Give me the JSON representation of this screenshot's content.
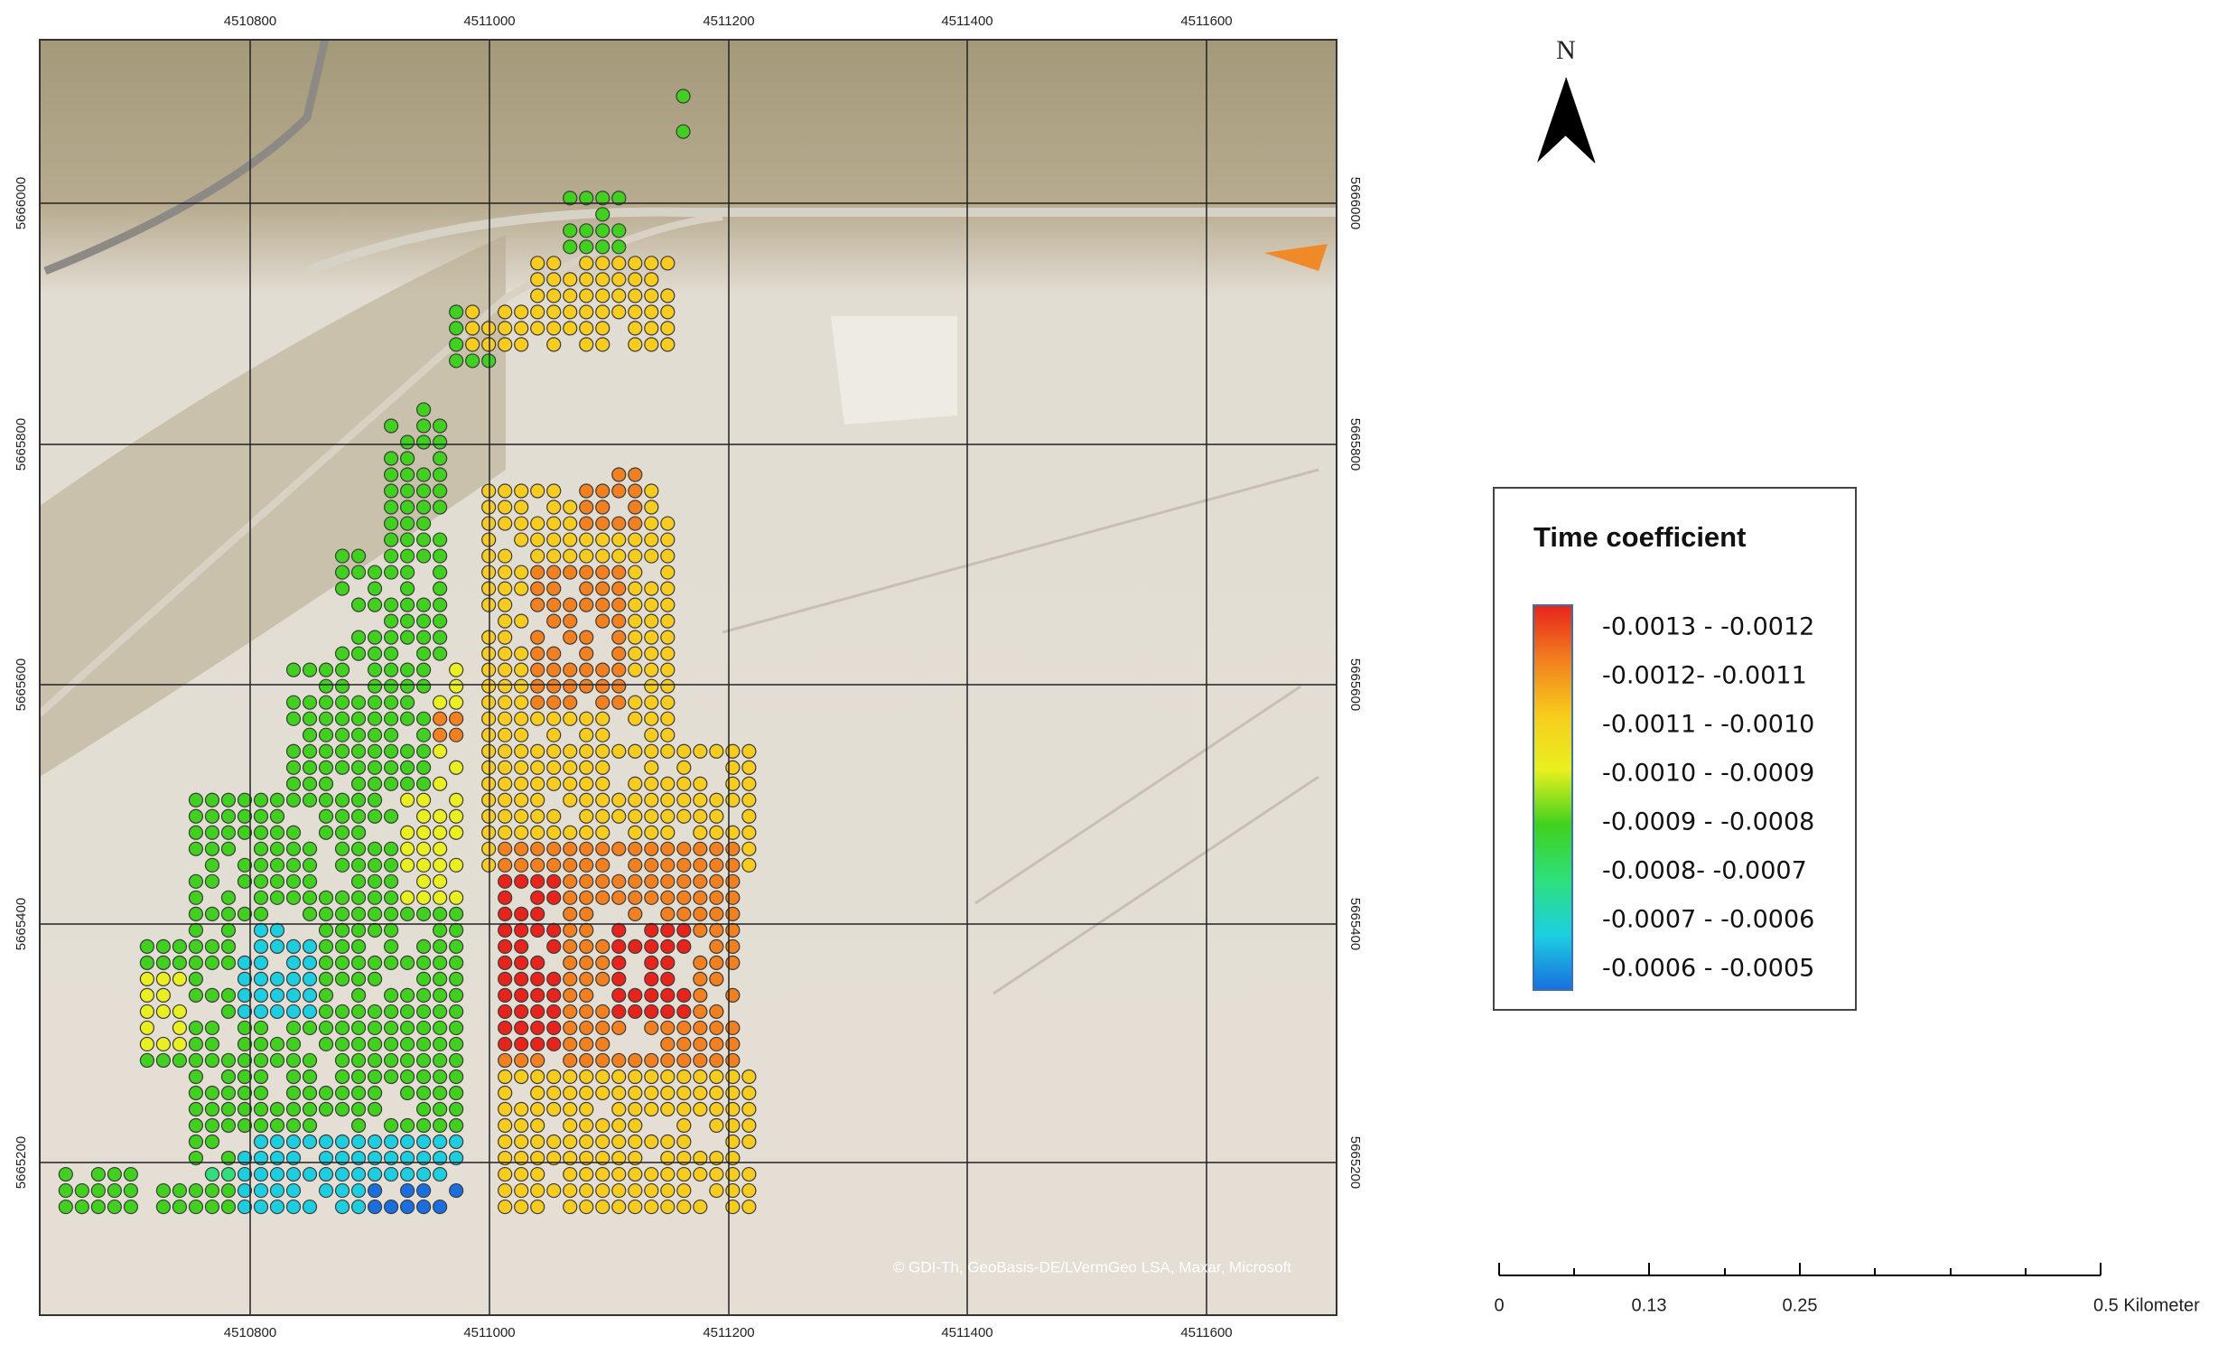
{
  "map": {
    "x_grid": [
      4510800,
      4511000,
      4511200,
      4511400,
      4511600
    ],
    "y_grid": [
      5666000,
      5665800,
      5665600,
      5665400,
      5665200
    ],
    "north_label": "N",
    "attribution": "© GDI-Th, GeoBasis-DE/LVermGeo LSA, Maxar, Microsoft",
    "legend": {
      "title": "Time coefficient",
      "classes": [
        "-0.0013 - -0.0012",
        "-0.0012- -0.0011",
        "-0.0011 - -0.0010",
        "-0.0010 - -0.0009",
        "-0.0009 - -0.0008",
        "-0.0008- -0.0007",
        "-0.0007 - -0.0006",
        "-0.0006 - -0.0005"
      ],
      "colors": [
        "#e8231c",
        "#f2801e",
        "#f7cc1d",
        "#e9f01e",
        "#3fd11e",
        "#2ee07a",
        "#1ccfe0",
        "#1a6fe0"
      ]
    },
    "scale_bar": {
      "labels": [
        "0",
        "0.13",
        "0.25",
        "0.5 Kilometer"
      ]
    }
  }
}
